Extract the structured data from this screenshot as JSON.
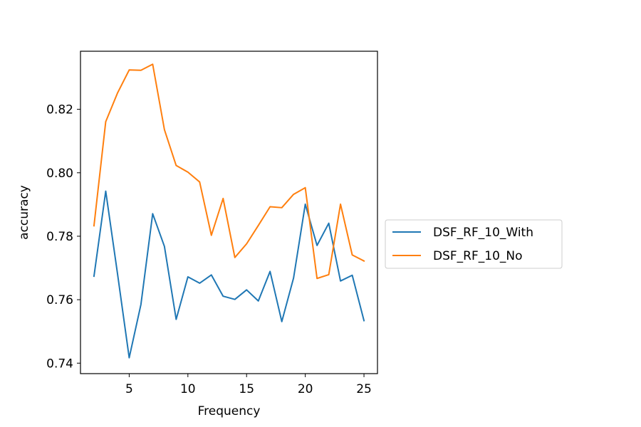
{
  "chart_data": {
    "type": "line",
    "title": "",
    "xlabel": "Frequency",
    "ylabel": "accuracy",
    "xlim": [
      0.85,
      26.15
    ],
    "ylim": [
      0.7367,
      0.8383
    ],
    "xticks": [
      5,
      10,
      15,
      20,
      25
    ],
    "xtick_labels": [
      "5",
      "10",
      "15",
      "20",
      "25"
    ],
    "yticks": [
      0.74,
      0.76,
      0.78,
      0.8,
      0.82
    ],
    "ytick_labels": [
      "0.74",
      "0.76",
      "0.78",
      "0.80",
      "0.82"
    ],
    "grid": false,
    "legend_position": "center-right outside",
    "x": [
      2,
      3,
      4,
      5,
      6,
      7,
      8,
      9,
      10,
      11,
      12,
      13,
      14,
      15,
      16,
      17,
      18,
      19,
      20,
      21,
      22,
      23,
      24,
      25
    ],
    "series": [
      {
        "name": "DSF_RF_10_With",
        "color": "#1f77b4",
        "values": [
          0.7674,
          0.7942,
          0.7683,
          0.7417,
          0.7585,
          0.7871,
          0.7768,
          0.7538,
          0.7672,
          0.7652,
          0.7678,
          0.7611,
          0.7601,
          0.7631,
          0.7596,
          0.7689,
          0.7531,
          0.7668,
          0.7901,
          0.7771,
          0.7841,
          0.7659,
          0.7677,
          0.7534
        ]
      },
      {
        "name": "DSF_RF_10_No",
        "color": "#ff7f0e",
        "values": [
          0.7833,
          0.8161,
          0.8251,
          0.8324,
          0.8323,
          0.8342,
          0.8136,
          0.8023,
          0.8002,
          0.7971,
          0.7803,
          0.7919,
          0.7733,
          0.7776,
          0.7834,
          0.7893,
          0.789,
          0.7932,
          0.7953,
          0.7667,
          0.7679,
          0.7901,
          0.7741,
          0.7722
        ]
      }
    ]
  }
}
